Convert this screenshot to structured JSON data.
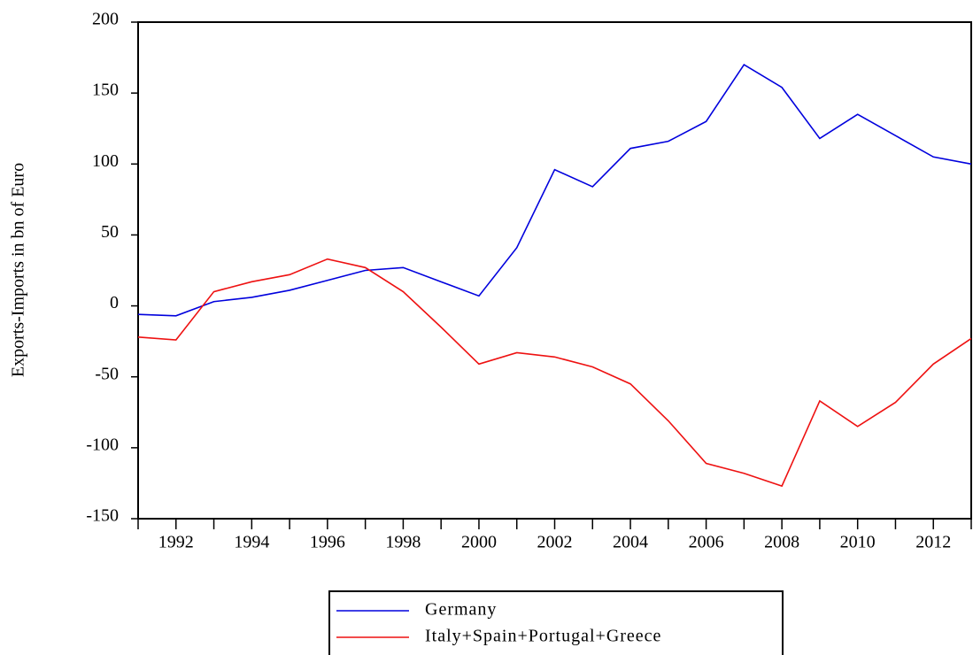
{
  "chart_data": {
    "type": "line",
    "y_label": "Exports-Imports in bn of Euro",
    "x": [
      1991,
      1992,
      1993,
      1994,
      1995,
      1996,
      1997,
      1998,
      1999,
      2000,
      2001,
      2002,
      2003,
      2004,
      2005,
      2006,
      2007,
      2008,
      2009,
      2010,
      2011,
      2012,
      2013
    ],
    "series": [
      {
        "name": "Germany",
        "color": "#0000dd",
        "values": [
          -6,
          -7,
          3,
          6,
          11,
          18,
          25,
          27,
          17,
          7,
          41,
          96,
          84,
          111,
          116,
          130,
          170,
          154,
          118,
          135,
          120,
          105,
          100
        ]
      },
      {
        "name": "Italy+Spain+Portugal+Greece",
        "color": "#ee1111",
        "values": [
          -22,
          -24,
          10,
          17,
          22,
          33,
          27,
          10,
          -15,
          -41,
          -33,
          -36,
          -43,
          -55,
          -81,
          -111,
          -118,
          -127,
          -67,
          -85,
          -68,
          -41,
          -23
        ]
      }
    ],
    "xlim": [
      1991,
      2013
    ],
    "xticks": [
      1992,
      1994,
      1996,
      1998,
      2000,
      2002,
      2004,
      2006,
      2008,
      2010,
      2012
    ],
    "xminorticks": [
      1991,
      1993,
      1995,
      1997,
      1999,
      2001,
      2003,
      2005,
      2007,
      2009,
      2011,
      2013
    ],
    "ylim": [
      -150,
      200
    ],
    "yticks": [
      -150,
      -100,
      -50,
      0,
      50,
      100,
      150,
      200
    ],
    "grid": false,
    "legend": "bottom"
  }
}
